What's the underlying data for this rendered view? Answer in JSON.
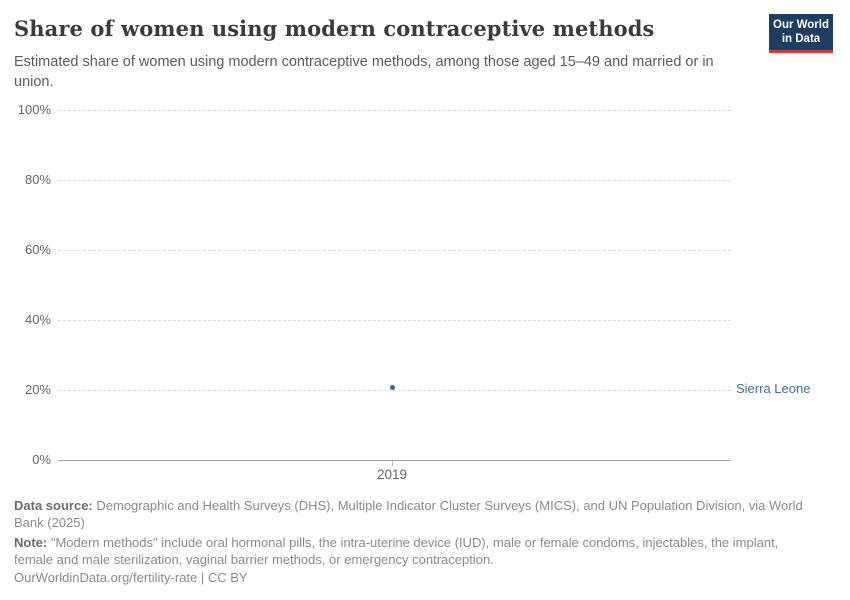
{
  "header": {
    "title": "Share of women using modern contraceptive methods",
    "subtitle": "Estimated share of women using modern contraceptive methods, among those aged 15–49 and married or in union."
  },
  "logo": {
    "line1": "Our World",
    "line2": "in Data",
    "bg_color": "#1d3d63",
    "accent_color": "#d73c34"
  },
  "chart_data": {
    "type": "scatter",
    "title": "Share of women using modern contraceptive methods",
    "x": [
      2019
    ],
    "x_tick_labels": [
      "2019"
    ],
    "series": [
      {
        "name": "Sierra Leone",
        "values": [
          21
        ],
        "color": "#3d66a6",
        "label_color": "#4c6a9c"
      }
    ],
    "y_ticks": [
      0,
      20,
      40,
      60,
      80,
      100
    ],
    "y_tick_suffix": "%",
    "ylim": [
      0,
      100
    ],
    "grid": "horizontal-dashed",
    "legend_position": "right-of-plot",
    "axis_color": "#a5a5a5",
    "gridline_color": "#d9d9d9",
    "tick_label_color": "#666666"
  },
  "footer": {
    "data_source_label": "Data source:",
    "data_source_text": "Demographic and Health Surveys (DHS), Multiple Indicator Cluster Surveys (MICS), and UN Population Division, via World Bank (2025)",
    "note_label": "Note:",
    "note_text": "\"Modern methods\" include oral hormonal pills, the intra-uterine device (IUD), male or female condoms, injectables, the implant, female and male sterilization, vaginal barrier methods, or emergency contraception.",
    "license_text": "OurWorldinData.org/fertility-rate | CC BY"
  }
}
